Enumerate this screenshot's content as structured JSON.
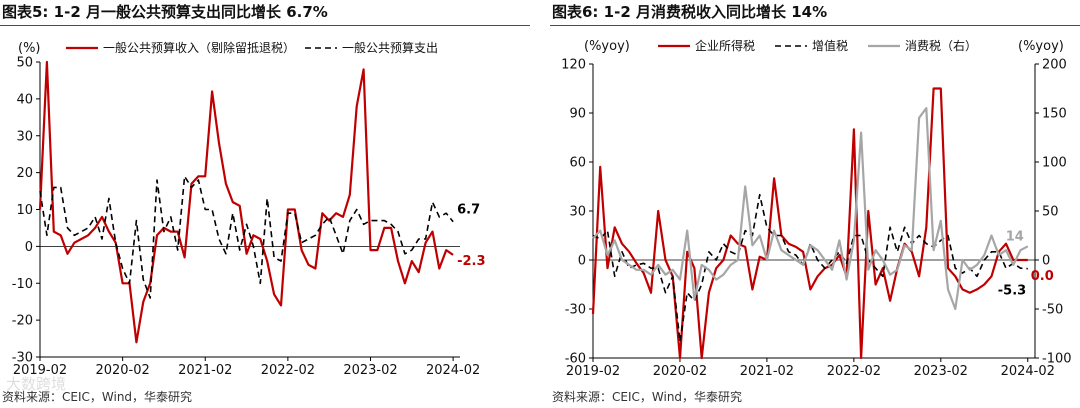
{
  "colors": {
    "red": "#c00000",
    "black": "#000000",
    "gray": "#a6a6a6",
    "accent": "#b21e23"
  },
  "watermark": "大数跨境",
  "charts": [
    {
      "title": "图表5:  1-2 月一般公共预算支出同比增长 6.7%",
      "source": "资料来源：CEIC，Wind，华泰研究",
      "chart_data": {
        "type": "line",
        "title": "图表5:  1-2 月一般公共预算支出同比增长 6.7%",
        "y_unit": "(%)",
        "ylim": [
          -30,
          50
        ],
        "yticks": [
          -30,
          -20,
          -10,
          0,
          10,
          20,
          30,
          40,
          50
        ],
        "xlim": [
          0,
          61
        ],
        "x_tick_labels": [
          "2019-02",
          "2020-02",
          "2021-02",
          "2022-02",
          "2023-02",
          "2024-02"
        ],
        "x_tick_positions": [
          0,
          12,
          24,
          36,
          48,
          60
        ],
        "series": [
          {
            "name": "一般公共预算收入（剔除留抵退税）",
            "style": "solid",
            "color": "#c00000",
            "values": [
              10,
              50,
              4,
              3,
              -2,
              1,
              2,
              3,
              5,
              8,
              4,
              1,
              -10,
              -10,
              -26,
              -15,
              -10,
              3,
              5,
              4,
              4,
              -3,
              17,
              19,
              19,
              42,
              28,
              17,
              12,
              11,
              -2,
              3,
              2,
              -4,
              -13,
              -16,
              10,
              10,
              -1,
              -5,
              -6,
              9,
              7,
              9,
              8,
              14,
              38,
              48,
              -1,
              -1,
              5,
              5,
              -4,
              -10,
              -4,
              -7,
              1,
              4,
              -6,
              -1,
              -2.3
            ],
            "end_label": "-2.3"
          },
          {
            "name": "一般公共预算支出",
            "style": "dashed",
            "color": "#000000",
            "values": [
              15,
              3,
              16,
              16,
              5,
              3,
              4,
              5,
              8,
              2,
              13,
              1,
              -6,
              -10,
              7,
              -9,
              -14,
              18,
              4,
              8,
              -1,
              19,
              16,
              18,
              10,
              10,
              2,
              -2,
              9,
              -1,
              6,
              0,
              -10,
              13,
              -3,
              -4,
              9,
              9,
              1,
              2,
              3,
              6,
              8,
              3,
              -2,
              7,
              10,
              6,
              7,
              7,
              7,
              6,
              4,
              -2,
              -1,
              2,
              2,
              12,
              8,
              9,
              6.7
            ],
            "end_label": "6.7"
          }
        ]
      }
    },
    {
      "title": "图表6:  1-2 月消费税收入同比增长 14%",
      "source": "资料来源：CEIC，Wind，华泰研究",
      "chart_data": {
        "type": "line",
        "title": "图表6:  1-2 月消费税收入同比增长 14%",
        "y_unit_left": "(%yoy)",
        "y_unit_right": "(%yoy)",
        "ylim": [
          -60,
          120
        ],
        "yticks": [
          -60,
          -30,
          0,
          30,
          60,
          90,
          120
        ],
        "ylim_right": [
          -100,
          200
        ],
        "yticks_right": [
          -100,
          -50,
          0,
          50,
          100,
          150,
          200
        ],
        "xlim": [
          0,
          61
        ],
        "x_tick_labels": [
          "2019-02",
          "2020-02",
          "2021-02",
          "2022-02",
          "2023-02",
          "2024-02"
        ],
        "x_tick_positions": [
          0,
          12,
          24,
          36,
          48,
          60
        ],
        "series": [
          {
            "name": "企业所得税",
            "style": "solid",
            "color": "#c00000",
            "axis": "left",
            "values": [
              -33,
              57,
              -5,
              20,
              10,
              5,
              -2,
              -8,
              -20,
              30,
              0,
              -10,
              -60,
              5,
              -5,
              -60,
              -20,
              -5,
              0,
              15,
              10,
              8,
              -18,
              2,
              0,
              50,
              15,
              10,
              8,
              5,
              -18,
              -10,
              -5,
              -3,
              3,
              -10,
              80,
              -60,
              30,
              -15,
              -5,
              -25,
              -5,
              10,
              5,
              -10,
              20,
              105,
              105,
              -5,
              -10,
              -18,
              -20,
              -18,
              -15,
              -10,
              5,
              10,
              0,
              0,
              0.0
            ],
            "end_label": "0.0"
          },
          {
            "name": "增值税",
            "style": "dashed",
            "color": "#000000",
            "axis": "left",
            "values": [
              15,
              13,
              18,
              -10,
              5,
              -5,
              -3,
              -2,
              -5,
              -5,
              -20,
              -10,
              -50,
              -20,
              -25,
              -15,
              5,
              0,
              10,
              5,
              3,
              18,
              15,
              40,
              20,
              15,
              15,
              5,
              3,
              -3,
              10,
              0,
              -5,
              0,
              5,
              -2,
              15,
              15,
              0,
              -5,
              -10,
              20,
              5,
              20,
              10,
              15,
              10,
              8,
              12,
              15,
              -5,
              -8,
              -5,
              -10,
              0,
              5,
              5,
              -5,
              -2,
              -5,
              -5.3
            ],
            "end_label": "-5.3"
          },
          {
            "name": "消费税（右）",
            "style": "solid",
            "color": "#a6a6a6",
            "axis": "right",
            "values": [
              22,
              30,
              5,
              20,
              0,
              -5,
              -10,
              -10,
              -15,
              -5,
              -15,
              -10,
              -20,
              30,
              -40,
              -5,
              -10,
              -20,
              -15,
              -5,
              0,
              75,
              15,
              25,
              0,
              30,
              10,
              5,
              0,
              -5,
              15,
              10,
              0,
              -10,
              20,
              -20,
              20,
              130,
              -10,
              10,
              0,
              -15,
              -10,
              15,
              10,
              145,
              155,
              10,
              40,
              -30,
              -50,
              0,
              -10,
              -5,
              5,
              25,
              5,
              10,
              -5,
              10,
              14
            ],
            "end_label": "14"
          }
        ]
      }
    }
  ]
}
